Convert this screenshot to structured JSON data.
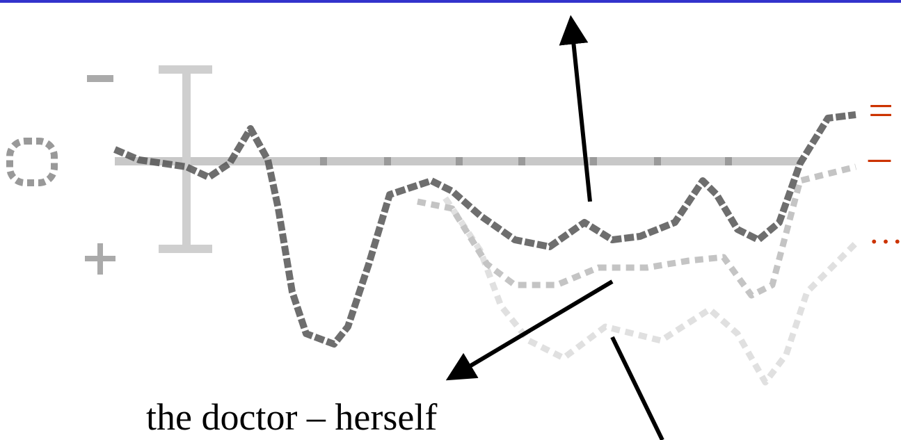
{
  "annotation": "the doctor – herself",
  "legend": [
    "=",
    "–",
    "…"
  ]
}
